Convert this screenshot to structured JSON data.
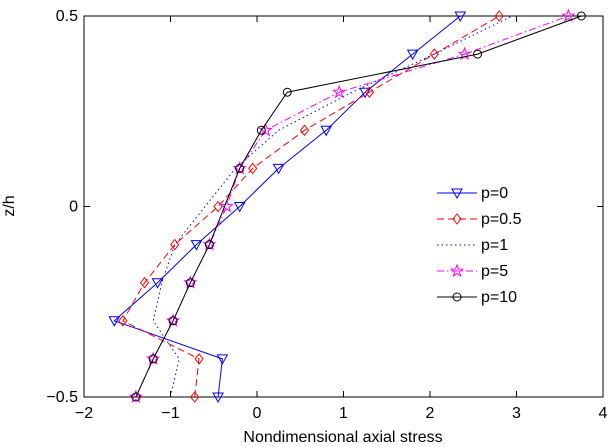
{
  "chart_data": {
    "type": "line",
    "xlabel": "Nondimensional axial stress",
    "ylabel": "z/h",
    "xlim": [
      -2,
      4
    ],
    "ylim": [
      -0.5,
      0.5
    ],
    "xticks": [
      -2,
      -1,
      0,
      1,
      2,
      3,
      4
    ],
    "xtick_labels": [
      "−2",
      "−1",
      "0",
      "1",
      "2",
      "3",
      "4"
    ],
    "yticks": [
      -0.5,
      0,
      0.5
    ],
    "ytick_labels": [
      "−0.5",
      "0",
      "0.5"
    ],
    "grid": false,
    "legend_position": "right",
    "series": [
      {
        "name": "p=0",
        "color": "#0000ff",
        "line": "solid",
        "marker": "triangle-down",
        "points": [
          [
            -0.45,
            -0.5
          ],
          [
            -0.4,
            -0.4
          ],
          [
            -1.65,
            -0.3
          ],
          [
            -1.15,
            -0.2
          ],
          [
            -0.7,
            -0.1
          ],
          [
            -0.2,
            0.0
          ],
          [
            0.25,
            0.1
          ],
          [
            0.8,
            0.2
          ],
          [
            1.25,
            0.3
          ],
          [
            1.8,
            0.4
          ],
          [
            2.35,
            0.5
          ]
        ]
      },
      {
        "name": "p=0.5",
        "color": "#ff0000",
        "line": "dashed",
        "marker": "diamond",
        "points": [
          [
            -0.72,
            -0.5
          ],
          [
            -0.67,
            -0.4
          ],
          [
            -1.55,
            -0.3
          ],
          [
            -1.3,
            -0.2
          ],
          [
            -0.95,
            -0.1
          ],
          [
            -0.45,
            0.0
          ],
          [
            -0.05,
            0.1
          ],
          [
            0.55,
            0.2
          ],
          [
            1.3,
            0.3
          ],
          [
            2.05,
            0.4
          ],
          [
            2.8,
            0.5
          ]
        ]
      },
      {
        "name": "p=1",
        "color": "#0000ff",
        "line": "dotted",
        "marker": "none",
        "points": [
          [
            -1.0,
            -0.5
          ],
          [
            -0.9,
            -0.4
          ],
          [
            -1.2,
            -0.3
          ],
          [
            -1.1,
            -0.2
          ],
          [
            -0.95,
            -0.1
          ],
          [
            -0.6,
            0.0
          ],
          [
            -0.25,
            0.1
          ],
          [
            0.25,
            0.2
          ],
          [
            1.1,
            0.3
          ],
          [
            2.05,
            0.4
          ],
          [
            2.95,
            0.5
          ]
        ]
      },
      {
        "name": "p=5",
        "color": "#ff00ff",
        "line": "dashdot",
        "marker": "star",
        "points": [
          [
            -1.4,
            -0.5
          ],
          [
            -1.2,
            -0.4
          ],
          [
            -0.97,
            -0.3
          ],
          [
            -0.77,
            -0.2
          ],
          [
            -0.55,
            -0.1
          ],
          [
            -0.35,
            0.0
          ],
          [
            -0.2,
            0.1
          ],
          [
            0.1,
            0.2
          ],
          [
            0.95,
            0.3
          ],
          [
            2.4,
            0.4
          ],
          [
            3.6,
            0.5
          ]
        ]
      },
      {
        "name": "p=10",
        "color": "#000000",
        "line": "solid",
        "marker": "circle",
        "points": [
          [
            -1.4,
            -0.5
          ],
          [
            -1.2,
            -0.4
          ],
          [
            -0.97,
            -0.3
          ],
          [
            -0.77,
            -0.2
          ],
          [
            -0.55,
            -0.1
          ],
          [
            -0.2,
            0.1
          ],
          [
            0.05,
            0.2
          ],
          [
            0.35,
            0.3
          ],
          [
            2.55,
            0.4
          ],
          [
            3.75,
            0.5
          ]
        ]
      }
    ]
  }
}
